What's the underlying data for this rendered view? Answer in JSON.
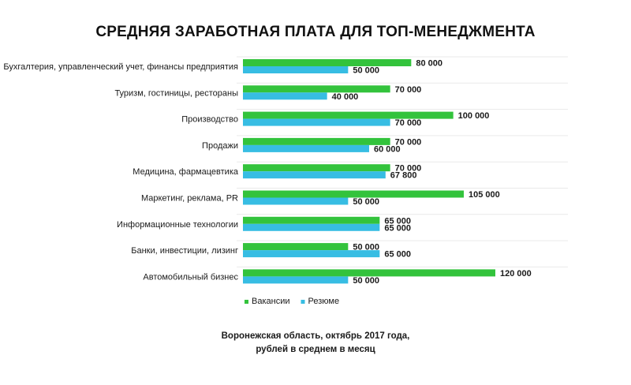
{
  "chart_data": {
    "type": "bar",
    "orientation": "horizontal",
    "title": "СРЕДНЯЯ ЗАРАБОТНАЯ ПЛАТА ДЛЯ ТОП-МЕНЕДЖМЕНТА",
    "categories": [
      "Бухгалтерия, управленческий учет, финансы предприятия",
      "Туризм, гостиницы, рестораны",
      "Производство",
      "Продажи",
      "Медицина, фармацевтика",
      "Маркетинг, реклама, PR",
      "Информационные технологии",
      "Банки, инвестиции, лизинг",
      "Автомобильный бизнес"
    ],
    "series": [
      {
        "name": "Вакансии",
        "color": "#33c33c",
        "values": [
          80000,
          70000,
          100000,
          70000,
          70000,
          105000,
          65000,
          50000,
          120000
        ],
        "labels": [
          "80 000",
          "70 000",
          "100 000",
          "70 000",
          "70 000",
          "105 000",
          "65 000",
          "50 000",
          "120 000"
        ]
      },
      {
        "name": "Резюме",
        "color": "#37bde3",
        "values": [
          50000,
          40000,
          70000,
          60000,
          67800,
          50000,
          65000,
          65000,
          50000
        ],
        "labels": [
          "50 000",
          "40 000",
          "70 000",
          "60 000",
          "67 800",
          "50 000",
          "65 000",
          "65 000",
          "50 000"
        ]
      }
    ],
    "xlim": [
      0,
      120000
    ],
    "grid": false,
    "legend_position": "bottom",
    "footnote": [
      "Воронежская область, октябрь 2017 года,",
      "рублей в среднем в месяц"
    ]
  }
}
